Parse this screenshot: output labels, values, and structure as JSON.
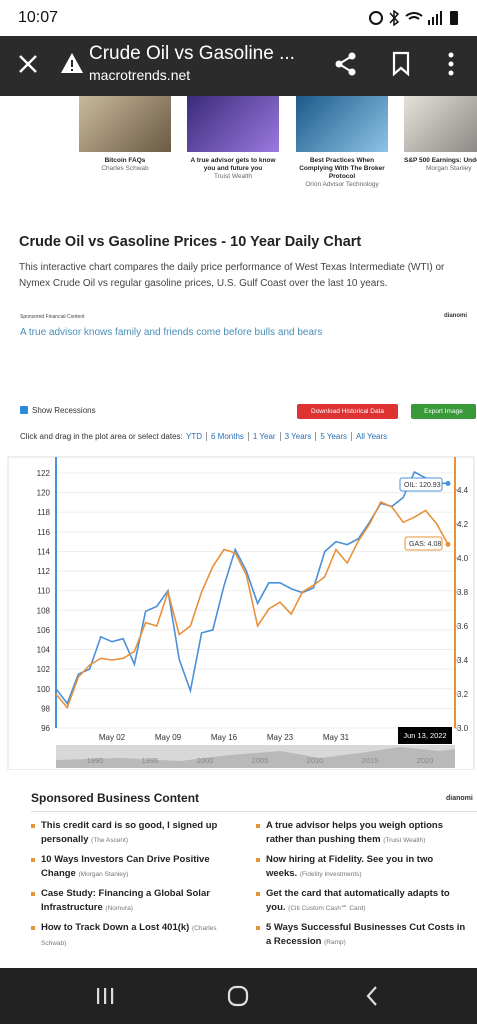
{
  "status_bar": {
    "time": "10:07"
  },
  "app_bar": {
    "title": "Crude Oil vs Gasoline ...",
    "url": "macrotrends.net"
  },
  "ads": [
    {
      "title": "Bitcoin FAQs",
      "source": "Charles Schwab"
    },
    {
      "title": "A true advisor gets to know you and future you",
      "source": "Truist Wealth"
    },
    {
      "title": "Best Practices When Complying With The Broker Protocol",
      "source": "Orion Advisor Technology"
    },
    {
      "title": "S&P 500 Earnings: Under",
      "source": "Morgan Stanley"
    }
  ],
  "article": {
    "heading": "Crude Oil vs Gasoline Prices - 10 Year Daily Chart",
    "body": "This interactive chart compares the daily price performance of West Texas Intermediate (WTI) or Nymex Crude Oil vs regular gasoline prices, U.S. Gulf Coast over the last 10 years."
  },
  "sponsored": {
    "label": "Sponsored Financial Content",
    "brand": "dianomi",
    "link": "A true advisor knows family and friends come before bulls and bears"
  },
  "controls": {
    "show_recessions": "Show Recessions",
    "download": "Download Historical Data",
    "export": "Export Image",
    "prompt": "Click and drag in the plot area or select dates:",
    "ranges": [
      "YTD",
      "6 Months",
      "1 Year",
      "3 Years",
      "5 Years",
      "All Years"
    ]
  },
  "chart": {
    "type": "line",
    "categories": [
      null,
      null,
      null,
      null,
      null,
      "May 02",
      null,
      null,
      null,
      null,
      "May 09",
      null,
      null,
      null,
      null,
      "May 16",
      null,
      null,
      null,
      null,
      "May 23",
      null,
      null,
      null,
      null,
      "May 31",
      null,
      null,
      null,
      null,
      null,
      null,
      null,
      null,
      null,
      null
    ],
    "series": [
      {
        "name": "OIL",
        "color": "#4a90d9",
        "values": [
          100,
          98.5,
          101.5,
          102,
          105.3,
          104.8,
          105.1,
          102.5,
          107.9,
          108.4,
          110,
          103,
          99.8,
          105.7,
          106,
          110.5,
          114.2,
          112,
          108.7,
          110.8,
          110.8,
          110.2,
          109.8,
          110.3,
          114,
          115,
          114.7,
          115.3,
          117,
          118.9,
          118.6,
          119.5,
          122.1,
          121.5,
          121,
          120.93
        ]
      },
      {
        "name": "GAS",
        "color": "#e8913a",
        "axis": "y2",
        "values": [
          3.2,
          3.12,
          3.3,
          3.37,
          3.41,
          3.4,
          3.41,
          3.45,
          3.62,
          3.6,
          3.8,
          3.55,
          3.6,
          3.8,
          3.95,
          4.05,
          4.03,
          3.9,
          3.6,
          3.7,
          3.74,
          3.67,
          3.8,
          3.84,
          3.89,
          4.05,
          3.97,
          4.1,
          4.2,
          4.33,
          4.3,
          4.21,
          4.24,
          4.28,
          4.2,
          4.08
        ]
      }
    ],
    "ylim": [
      96,
      122
    ],
    "yticks": [
      96,
      98,
      100,
      102,
      104,
      106,
      108,
      110,
      112,
      114,
      116,
      118,
      120,
      122
    ],
    "y2lim": [
      3,
      4.5
    ],
    "y2ticks": [
      {
        "value": 3,
        "label": "3.0"
      },
      3.2,
      3.4,
      3.6,
      3.8,
      {
        "value": 4,
        "label": "4.0"
      },
      4.2,
      4.4
    ],
    "grid": true,
    "tooltips": {
      "oil": "OIL: 120.93",
      "gas": "GAS: 4.08",
      "date": "Jun 13, 2022"
    },
    "navigator_labels": [
      "1990",
      "1995",
      "2000",
      "2005",
      "2010",
      "2015",
      "2020"
    ]
  },
  "business": {
    "heading": "Sponsored Business Content",
    "brand": "dianomi",
    "items": [
      {
        "title": "This credit card is so good, I signed up personally",
        "source": "(The Ascent)"
      },
      {
        "title": "A true advisor helps you weigh options rather than pushing them",
        "source": "(Truist Wealth)"
      },
      {
        "title": "10 Ways Investors Can Drive Positive Change",
        "source": "(Morgan Stanley)"
      },
      {
        "title": "Now hiring at Fidelity. See you in two weeks.",
        "source": "(Fidelity Investments)"
      },
      {
        "title": "Case Study: Financing a Global Solar Infrastructure",
        "source": "(Nomura)"
      },
      {
        "title": "Get the card that automatically adapts to you.",
        "source": "(Citi Custom Cash℠ Card)"
      },
      {
        "title": "How to Track Down a Lost 401(k)",
        "source": "(Charles Schwab)"
      },
      {
        "title": "5 Ways Successful Businesses Cut Costs in a Recession",
        "source": "(Ramp)"
      }
    ]
  }
}
